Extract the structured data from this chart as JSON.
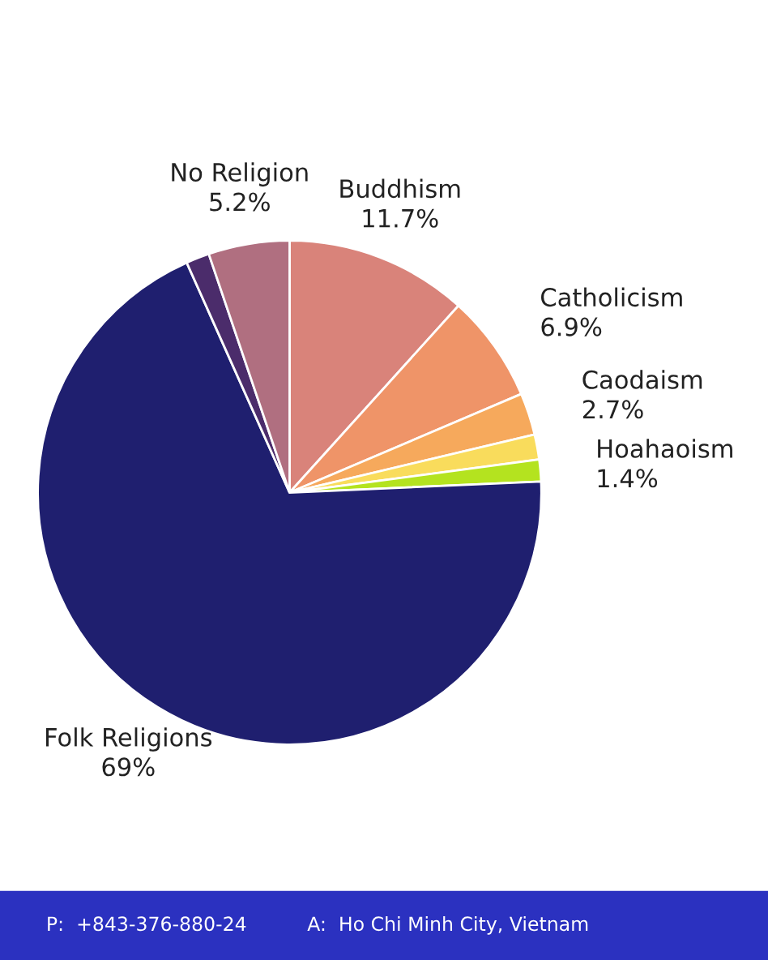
{
  "chart_data": {
    "type": "pie",
    "categories": [
      "Buddhism",
      "Catholicism",
      "Caodaism",
      null,
      "Hoahaoism",
      "Folk Religions",
      null,
      "No Religion"
    ],
    "values": [
      11.7,
      6.9,
      2.7,
      1.6,
      1.4,
      69,
      1.5,
      5.2
    ],
    "colors": [
      "#d9837a",
      "#ef9468",
      "#f6a95c",
      "#f9dc5c",
      "#b4e31f",
      "#1f1f6f",
      "#4b2c6b",
      "#b06f80"
    ],
    "value_labels": [
      "11.7%",
      "6.9%",
      "2.7%",
      null,
      "1.4%",
      "69%",
      null,
      "5.2%"
    ],
    "annotations": [
      "P:  +843-376-880-24",
      "A:  Ho Chi Minh City, Vietnam"
    ]
  }
}
